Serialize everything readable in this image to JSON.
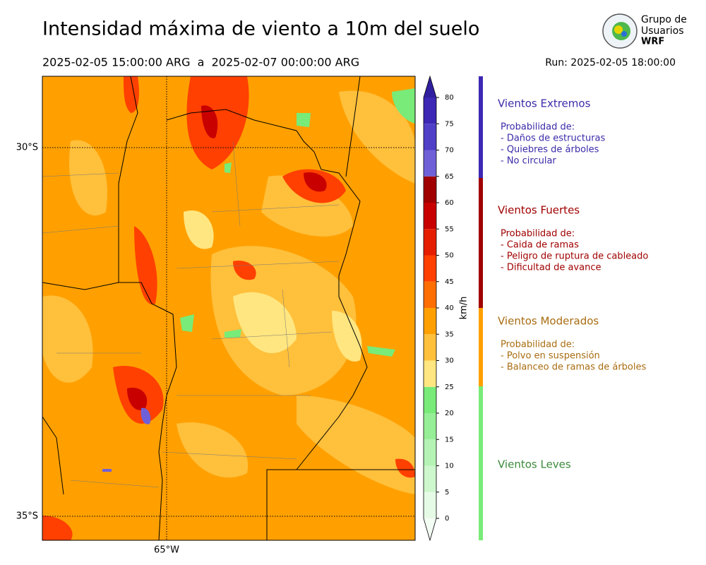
{
  "header": {
    "title": "Intensidad máxima de viento a 10m del suelo",
    "period": "2025-02-05 15:00:00 ARG  a  2025-02-07 00:00:00 ARG",
    "run": "Run: 2025-02-05 18:00:00"
  },
  "logo": {
    "lines": [
      "Grupo de",
      "Usuarios",
      "WRF"
    ]
  },
  "map": {
    "lat_labels": [
      "30°S",
      "35°S"
    ],
    "lon_labels": [
      "65°W"
    ]
  },
  "colorbar": {
    "label": "km/h",
    "ticks": [
      0,
      5,
      10,
      15,
      20,
      25,
      30,
      35,
      40,
      45,
      50,
      55,
      60,
      65,
      70,
      75,
      80
    ],
    "colors": [
      "#e6fbe6",
      "#cdf7cd",
      "#b4f3b4",
      "#96ef96",
      "#78eb78",
      "#ffe680",
      "#ffc03c",
      "#ffa000",
      "#ff6e00",
      "#ff4000",
      "#e61e00",
      "#c80000",
      "#a00000",
      "#7060d8",
      "#5040c8",
      "#3c28b4"
    ],
    "under_color": "#f4fdf4",
    "over_color": "#3020a0"
  },
  "legend": [
    {
      "title": "Vientos Extremos",
      "bar_color": "#3c28b4",
      "text_color": "#3a2aa8",
      "heading": "Probabilidad de:",
      "items": [
        "- Daños de estructuras",
        "- Quiebres de árboles",
        "- No circular"
      ]
    },
    {
      "title": "Vientos Fuertes",
      "bar_color": "#a00000",
      "text_color": "#a00000",
      "heading": "Probabilidad de:",
      "items": [
        "- Caida de ramas",
        "- Peligro de ruptura de cableado",
        "- Dificultad de avance"
      ]
    },
    {
      "title": "Vientos Moderados",
      "bar_color": "#ffa000",
      "text_color": "#a86c10",
      "heading": "Probabilidad de:",
      "items": [
        "- Polvo en suspensión",
        "- Balanceo de ramas de árboles"
      ]
    },
    {
      "title": "Vientos Leves",
      "bar_color": "#78eb78",
      "text_color": "#3a8a3a",
      "items": []
    }
  ]
}
